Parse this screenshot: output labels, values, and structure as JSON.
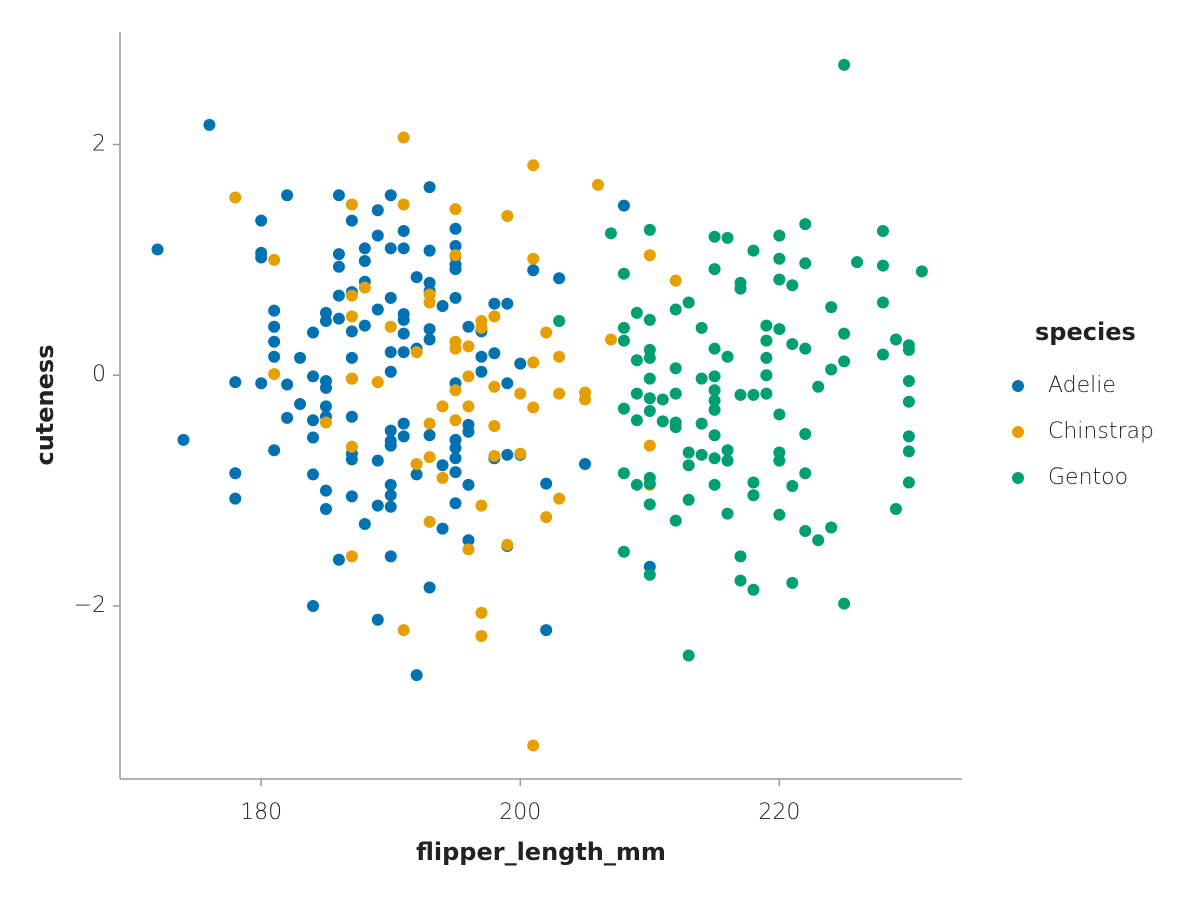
{
  "chart_data": {
    "type": "scatter",
    "xlabel": "flipper_length_mm",
    "ylabel": "cuteness",
    "legend_title": "species",
    "xlim": [
      169.1,
      234.1
    ],
    "ylim": [
      -3.5,
      2.975
    ],
    "xticks": [
      180,
      200,
      220
    ],
    "yticks": [
      {
        "value": -2,
        "label": "−2"
      },
      0,
      2
    ],
    "grid": false,
    "legend": "right",
    "series": [
      {
        "name": "Adelie",
        "color": "#0072b2",
        "x": [
          172,
          174,
          176,
          178,
          178,
          178,
          180,
          180,
          180,
          180,
          181,
          181,
          181,
          181,
          181,
          182,
          182,
          182,
          183,
          183,
          184,
          184,
          184,
          184,
          184,
          184,
          185,
          185,
          185,
          185,
          185,
          185,
          185,
          185,
          186,
          186,
          186,
          186,
          186,
          186,
          187,
          187,
          187,
          187,
          187,
          187,
          187,
          187,
          187,
          188,
          188,
          188,
          188,
          188,
          189,
          189,
          189,
          189,
          189,
          189,
          190,
          190,
          190,
          190,
          190,
          190,
          190,
          190,
          190,
          190,
          190,
          190,
          191,
          191,
          191,
          191,
          191,
          191,
          191,
          191,
          192,
          192,
          192,
          192,
          193,
          193,
          193,
          193,
          193,
          193,
          193,
          193,
          194,
          194,
          194,
          195,
          195,
          195,
          195,
          195,
          195,
          195,
          195,
          195,
          195,
          195,
          195,
          196,
          196,
          196,
          196,
          196,
          197,
          197,
          197,
          198,
          198,
          198,
          199,
          199,
          199,
          199,
          200,
          200,
          201,
          202,
          202,
          203,
          205,
          208,
          210
        ],
        "values": [
          1.09,
          -0.56,
          2.17,
          -0.06,
          -0.85,
          -1.07,
          1.34,
          1.06,
          1.02,
          -0.07,
          0.56,
          0.42,
          0.29,
          0.16,
          -0.65,
          1.56,
          -0.08,
          -0.37,
          0.15,
          -0.25,
          0.37,
          -0.01,
          -0.39,
          -0.54,
          -0.86,
          -2.0,
          0.54,
          0.47,
          -0.05,
          -0.11,
          -0.27,
          -0.36,
          -1.0,
          -1.16,
          1.56,
          1.05,
          0.94,
          0.69,
          0.49,
          -1.6,
          1.34,
          0.72,
          0.38,
          0.15,
          -0.03,
          -0.36,
          -0.68,
          -0.73,
          -1.05,
          1.1,
          0.99,
          0.81,
          0.43,
          -1.29,
          1.43,
          1.21,
          0.57,
          -0.74,
          -1.13,
          -2.12,
          1.56,
          1.1,
          0.67,
          0.2,
          0.03,
          -0.48,
          -0.57,
          -0.61,
          -0.95,
          -1.04,
          -1.14,
          -1.57,
          1.25,
          1.1,
          0.53,
          0.48,
          0.36,
          0.2,
          -0.42,
          -0.53,
          0.85,
          0.23,
          -0.86,
          -2.6,
          1.63,
          1.08,
          0.8,
          0.73,
          0.4,
          0.31,
          -0.52,
          -1.84,
          0.6,
          -0.78,
          -1.33,
          1.27,
          1.12,
          1.03,
          0.96,
          0.92,
          0.67,
          -0.07,
          -0.56,
          -0.63,
          -0.72,
          -0.84,
          -1.11,
          0.42,
          -0.43,
          -0.49,
          -0.95,
          -1.43,
          0.38,
          0.16,
          0.03,
          0.62,
          0.19,
          -0.72,
          0.62,
          -0.07,
          -0.69,
          -1.48,
          0.1,
          -0.69,
          0.91,
          -0.94,
          -2.21,
          0.84,
          -0.77,
          1.47,
          -1.66
        ]
      },
      {
        "name": "Chinstrap",
        "color": "#e69f00",
        "x": [
          178,
          181,
          181,
          185,
          187,
          187,
          187,
          187,
          187,
          187,
          188,
          189,
          190,
          191,
          191,
          191,
          192,
          192,
          193,
          193,
          193,
          193,
          193,
          194,
          194,
          195,
          195,
          195,
          195,
          195,
          195,
          196,
          196,
          196,
          196,
          197,
          197,
          197,
          197,
          197,
          198,
          198,
          198,
          198,
          199,
          199,
          200,
          200,
          201,
          201,
          201,
          201,
          201,
          202,
          202,
          203,
          203,
          203,
          205,
          205,
          206,
          207,
          210,
          210,
          210,
          212
        ],
        "values": [
          1.54,
          1.0,
          0.01,
          -0.41,
          1.48,
          0.69,
          0.51,
          -0.03,
          -0.62,
          -1.57,
          0.76,
          -0.06,
          0.42,
          2.06,
          1.48,
          -2.21,
          0.2,
          -0.77,
          0.7,
          0.63,
          -0.42,
          -0.71,
          -1.27,
          -0.27,
          -0.89,
          1.44,
          1.04,
          0.29,
          0.23,
          -0.13,
          -0.39,
          0.25,
          -0.01,
          -0.27,
          -1.51,
          0.47,
          0.41,
          -1.13,
          -2.06,
          -2.26,
          0.51,
          -0.1,
          -0.44,
          -0.7,
          1.38,
          -1.47,
          -0.16,
          -0.68,
          1.82,
          1.01,
          0.11,
          -0.28,
          -3.21,
          0.37,
          -1.23,
          0.16,
          -0.16,
          -1.07,
          -0.15,
          -0.21,
          1.65,
          0.31,
          1.04,
          -0.61,
          -0.95,
          0.82
        ]
      },
      {
        "name": "Gentoo",
        "color": "#009e73",
        "x": [
          203,
          207,
          208,
          208,
          208,
          208,
          208,
          208,
          209,
          209,
          209,
          209,
          209,
          210,
          210,
          210,
          210,
          210,
          210,
          210,
          210,
          210,
          210,
          210,
          211,
          211,
          212,
          212,
          212,
          212,
          212,
          212,
          213,
          213,
          213,
          213,
          213,
          214,
          214,
          214,
          214,
          215,
          215,
          215,
          215,
          215,
          215,
          215,
          215,
          215,
          215,
          216,
          216,
          216,
          216,
          216,
          217,
          217,
          217,
          217,
          217,
          218,
          218,
          218,
          218,
          218,
          219,
          219,
          219,
          219,
          219,
          220,
          220,
          220,
          220,
          220,
          220,
          220,
          220,
          221,
          221,
          221,
          221,
          222,
          222,
          222,
          222,
          222,
          222,
          223,
          223,
          224,
          224,
          224,
          225,
          225,
          225,
          225,
          226,
          228,
          228,
          228,
          228,
          229,
          229,
          230,
          230,
          230,
          230,
          230,
          230,
          230,
          231
        ],
        "values": [
          0.47,
          1.23,
          0.88,
          0.41,
          0.3,
          -0.29,
          -0.85,
          -1.53,
          0.54,
          0.13,
          -0.16,
          -0.39,
          -0.95,
          1.26,
          0.48,
          0.22,
          0.15,
          -0.03,
          -0.2,
          -0.31,
          -0.89,
          -0.94,
          -1.12,
          -1.73,
          -0.21,
          -0.4,
          0.57,
          0.06,
          -0.16,
          -0.41,
          -0.45,
          -1.26,
          0.63,
          -0.67,
          -0.78,
          -1.08,
          -2.43,
          0.41,
          -0.03,
          -0.42,
          -0.69,
          1.2,
          0.92,
          0.23,
          -0.01,
          -0.13,
          -0.22,
          -0.3,
          -0.52,
          -0.72,
          -0.95,
          1.19,
          0.16,
          -0.65,
          -0.74,
          -1.2,
          0.8,
          0.75,
          -0.17,
          -1.57,
          -1.78,
          1.08,
          -0.17,
          -0.93,
          -1.04,
          -1.86,
          0.43,
          0.3,
          0.15,
          0.0,
          -0.16,
          1.21,
          1.01,
          0.83,
          0.4,
          -0.34,
          -0.67,
          -0.74,
          -1.21,
          0.78,
          0.27,
          -0.96,
          -1.8,
          1.31,
          0.97,
          0.23,
          -0.51,
          -0.85,
          -1.35,
          -0.1,
          -1.43,
          0.59,
          0.05,
          -1.32,
          2.69,
          0.36,
          0.12,
          -1.98,
          0.98,
          1.25,
          0.95,
          0.63,
          0.18,
          0.31,
          -1.16,
          0.26,
          0.22,
          -0.05,
          -0.23,
          -0.53,
          -0.66,
          -0.93,
          0.9
        ]
      }
    ]
  }
}
